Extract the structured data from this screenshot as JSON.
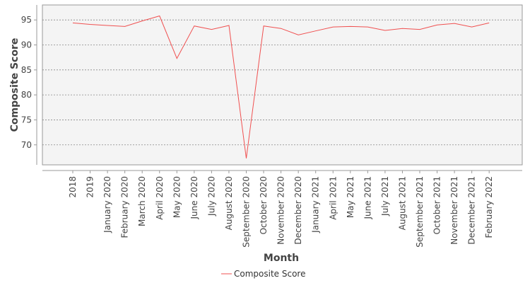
{
  "chart_data": {
    "type": "line",
    "xlabel": "Month",
    "ylabel": "Composite Score",
    "ylim": [
      66,
      98
    ],
    "yticks": [
      70,
      75,
      80,
      85,
      90,
      95
    ],
    "grid": "horizontal-dashed",
    "legend": "bottom-center",
    "colors": {
      "line": "#f05050",
      "plot_bg": "#f4f4f4",
      "grid": "#888888"
    },
    "categories": [
      "2018",
      "2019",
      "January 2020",
      "February 2020",
      "March 2020",
      "April 2020",
      "May 2020",
      "June 2020",
      "July 2020",
      "August 2020",
      "September 2020",
      "October 2020",
      "November 2020",
      "December 2020",
      "January 2021",
      "April 2021",
      "May 2021",
      "June 2021",
      "July 2021",
      "August 2021",
      "September 2021",
      "October 2021",
      "November 2021",
      "December 2021",
      "February 2022"
    ],
    "series": [
      {
        "name": "Composite Score",
        "values": [
          94.4,
          94.1,
          93.9,
          93.7,
          94.8,
          95.8,
          87.3,
          93.8,
          93.1,
          93.9,
          67.3,
          93.8,
          93.3,
          92.0,
          92.8,
          93.6,
          93.7,
          93.6,
          92.9,
          93.3,
          93.1,
          94.0,
          94.3,
          93.6,
          94.4
        ]
      }
    ]
  }
}
